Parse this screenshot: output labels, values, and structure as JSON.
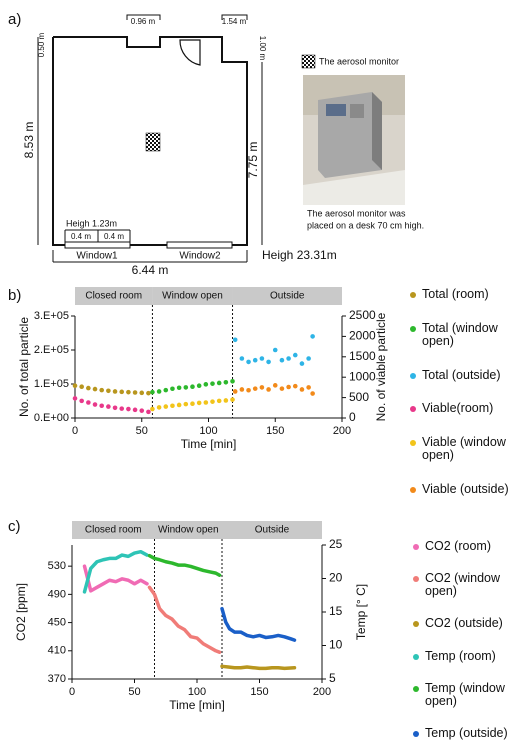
{
  "panel_a": {
    "label": "a)",
    "dims": {
      "top_left": "0.96 m",
      "top_right": "1.54 m",
      "left_small": "0.50 m",
      "right_small": "1.00 m",
      "left": "8.53 m",
      "right": "7.75 m",
      "window_height": "Heigh 1.23m",
      "pane1": "0.4 m",
      "pane2": "0.4 m",
      "bottom": "6.44 m",
      "room_height": "Heigh 23.31m"
    },
    "windows": [
      "Window1",
      "Window2"
    ],
    "monitor_legend": "The aerosol monitor",
    "caption": [
      "The aerosol monitor was",
      "placed on a desk 70 cm high."
    ]
  },
  "chart_data": [
    {
      "type": "scatter",
      "label": "b)",
      "phases": [
        {
          "label": "Closed room",
          "start": 0,
          "end": 58
        },
        {
          "label": "Window open",
          "start": 58,
          "end": 118
        },
        {
          "label": "Outside",
          "start": 118,
          "end": 200
        }
      ],
      "x_label": "Time [min]",
      "y_label": "No. of total particle",
      "y2_label": "No. of viable particle",
      "xlim": [
        0,
        200
      ],
      "xticks": [
        0,
        50,
        100,
        150,
        200
      ],
      "ylim": [
        0,
        300000
      ],
      "yticks": [
        {
          "value": 0,
          "label": "0.E+00"
        },
        {
          "value": 100000,
          "label": "1.E+05"
        },
        {
          "value": 200000,
          "label": "2.E+05"
        },
        {
          "value": 300000,
          "label": "3.E+05"
        }
      ],
      "y2lim": [
        0,
        2500
      ],
      "y2ticks": [
        0,
        500,
        1000,
        1500,
        2000,
        2500
      ],
      "series": [
        {
          "name": "Total (room)",
          "color": "#b8961e",
          "axis": "y",
          "x": [
            0,
            5,
            10,
            15,
            20,
            25,
            30,
            35,
            40,
            45,
            50,
            55
          ],
          "values": [
            95000,
            92000,
            88000,
            85000,
            82000,
            80000,
            78000,
            77000,
            76000,
            75000,
            74000,
            73000
          ]
        },
        {
          "name": "Total (window open)",
          "color": "#2db82d",
          "axis": "y",
          "x": [
            58,
            63,
            68,
            73,
            78,
            83,
            88,
            93,
            98,
            103,
            108,
            113,
            118
          ],
          "values": [
            76000,
            78000,
            82000,
            86000,
            89000,
            90000,
            92000,
            95000,
            99000,
            101000,
            103000,
            105000,
            108000
          ]
        },
        {
          "name": "Total (outside)",
          "color": "#2eb4e6",
          "axis": "y",
          "x": [
            120,
            125,
            130,
            135,
            140,
            145,
            150,
            155,
            160,
            165,
            170,
            175,
            178
          ],
          "values": [
            230000,
            175000,
            165000,
            170000,
            175000,
            165000,
            200000,
            170000,
            175000,
            185000,
            160000,
            175000,
            240000
          ]
        },
        {
          "name": "Viable(room)",
          "color": "#e8388a",
          "axis": "y2",
          "x": [
            0,
            5,
            10,
            15,
            20,
            25,
            30,
            35,
            40,
            45,
            50,
            55
          ],
          "values": [
            480,
            420,
            380,
            330,
            300,
            280,
            250,
            230,
            220,
            200,
            180,
            150
          ]
        },
        {
          "name": "Viable (window open)",
          "color": "#f2c41a",
          "axis": "y2",
          "x": [
            58,
            63,
            68,
            73,
            78,
            83,
            88,
            93,
            98,
            103,
            108,
            113,
            118
          ],
          "values": [
            220,
            260,
            280,
            300,
            320,
            340,
            350,
            370,
            380,
            400,
            420,
            430,
            450
          ]
        },
        {
          "name": "Viable (outside)",
          "color": "#f28a1a",
          "axis": "y2",
          "x": [
            120,
            125,
            130,
            135,
            140,
            145,
            150,
            155,
            160,
            165,
            170,
            175,
            178
          ],
          "values": [
            650,
            700,
            680,
            720,
            750,
            700,
            800,
            720,
            760,
            780,
            700,
            750,
            600
          ]
        }
      ]
    },
    {
      "type": "line",
      "label": "c)",
      "phases": [
        {
          "label": "Closed room",
          "start": 0,
          "end": 66
        },
        {
          "label": "Window open",
          "start": 66,
          "end": 120
        },
        {
          "label": "Outside",
          "start": 120,
          "end": 200
        }
      ],
      "x_label": "Time [min]",
      "y_label": "CO2 [ppm]",
      "y2_label": "Temp [° C]",
      "xlim": [
        0,
        200
      ],
      "xticks": [
        0,
        50,
        100,
        150,
        200
      ],
      "ylim": [
        370,
        560
      ],
      "yticks": [
        370,
        410,
        450,
        490,
        530
      ],
      "y2lim": [
        5,
        25
      ],
      "y2ticks": [
        5,
        10,
        15,
        20,
        25
      ],
      "series": [
        {
          "name": "CO2 (room)",
          "color": "#f06bb4",
          "axis": "y",
          "x": [
            10,
            15,
            20,
            25,
            30,
            35,
            40,
            45,
            50,
            55,
            60
          ],
          "values": [
            530,
            495,
            500,
            505,
            510,
            508,
            512,
            510,
            505,
            510,
            505
          ]
        },
        {
          "name": "CO2 (window open)",
          "color": "#f07c78",
          "axis": "y",
          "x": [
            62,
            66,
            70,
            75,
            80,
            85,
            90,
            95,
            100,
            105,
            110,
            115,
            118
          ],
          "values": [
            500,
            490,
            470,
            460,
            455,
            445,
            440,
            430,
            428,
            420,
            415,
            410,
            408
          ]
        },
        {
          "name": "CO2 (outside)",
          "color": "#b8961e",
          "axis": "y",
          "x": [
            120,
            125,
            130,
            135,
            140,
            145,
            150,
            155,
            160,
            165,
            170,
            178
          ],
          "values": [
            388,
            387,
            386,
            386,
            387,
            386,
            385,
            385,
            386,
            386,
            385,
            386
          ]
        },
        {
          "name": "Temp (room)",
          "color": "#2ec4b6",
          "axis": "y2",
          "x": [
            10,
            15,
            20,
            25,
            30,
            35,
            40,
            45,
            50,
            55,
            60
          ],
          "values": [
            18,
            21.5,
            22.5,
            22.8,
            23,
            23,
            23.5,
            23.3,
            23.8,
            24,
            23.5
          ]
        },
        {
          "name": "Temp (window open)",
          "color": "#2db82d",
          "axis": "y2",
          "x": [
            62,
            66,
            70,
            75,
            80,
            85,
            90,
            95,
            100,
            105,
            110,
            115,
            118
          ],
          "values": [
            23.4,
            23,
            22.8,
            22.5,
            22.3,
            22,
            22,
            21.8,
            21.5,
            21.2,
            21,
            20.8,
            20.5
          ]
        },
        {
          "name": "Temp (outside)",
          "color": "#1a5fc8",
          "axis": "y2",
          "x": [
            120,
            123,
            126,
            130,
            135,
            140,
            145,
            150,
            155,
            160,
            165,
            170,
            175,
            178
          ],
          "values": [
            15.5,
            13.5,
            12.5,
            12,
            12,
            11.5,
            11.3,
            11.5,
            11.2,
            11.3,
            11.5,
            11.3,
            11,
            10.8
          ]
        }
      ]
    }
  ]
}
